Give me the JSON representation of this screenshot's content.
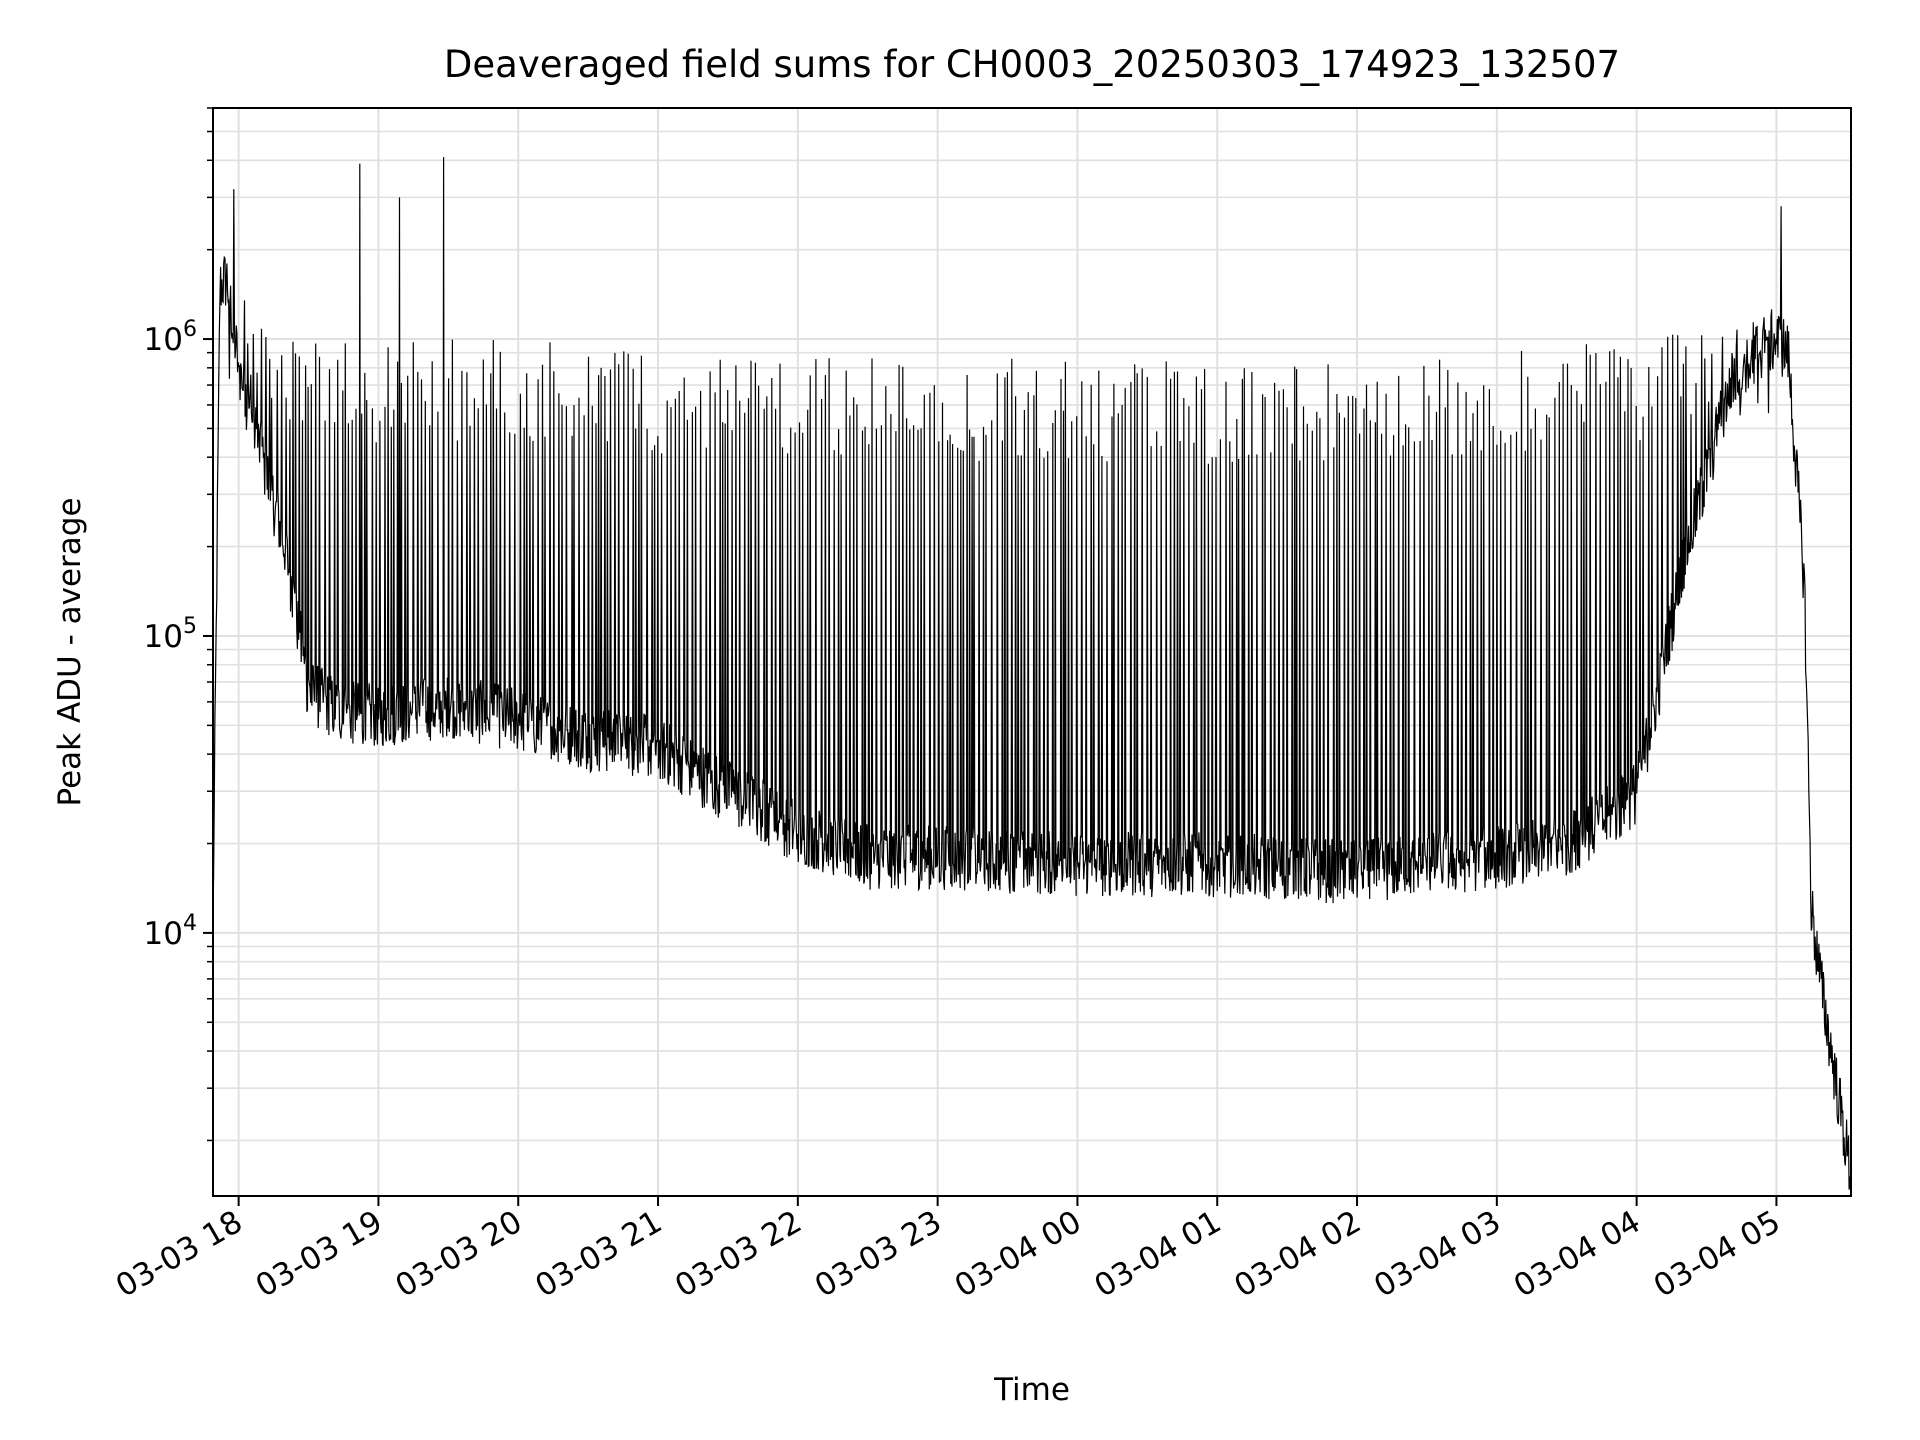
{
  "chart_data": {
    "type": "line",
    "title": "Deaveraged field sums for CH0003_20250303_174923_132507",
    "xlabel": "Time",
    "ylabel": "Peak ADU - average",
    "yscale": "log",
    "ylim": [
      1300,
      6000000
    ],
    "xlim": [
      "2025-03-03 17:49",
      "2025-03-04 05:32"
    ],
    "grid": true,
    "line_color": "#000000",
    "grid_color": "#e0e0e0",
    "xticks": [
      {
        "t": "2025-03-03 18:00",
        "label": "03-03 18"
      },
      {
        "t": "2025-03-03 19:00",
        "label": "03-03 19"
      },
      {
        "t": "2025-03-03 20:00",
        "label": "03-03 20"
      },
      {
        "t": "2025-03-03 21:00",
        "label": "03-03 21"
      },
      {
        "t": "2025-03-03 22:00",
        "label": "03-03 22"
      },
      {
        "t": "2025-03-03 23:00",
        "label": "03-03 23"
      },
      {
        "t": "2025-03-04 00:00",
        "label": "03-04 00"
      },
      {
        "t": "2025-03-04 01:00",
        "label": "03-04 01"
      },
      {
        "t": "2025-03-04 02:00",
        "label": "03-04 02"
      },
      {
        "t": "2025-03-04 03:00",
        "label": "03-04 03"
      },
      {
        "t": "2025-03-04 04:00",
        "label": "03-04 04"
      },
      {
        "t": "2025-03-04 05:00",
        "label": "03-04 05"
      }
    ],
    "yticks": [
      {
        "value": 10000,
        "base": "10",
        "exp": "4"
      },
      {
        "value": 100000,
        "base": "10",
        "exp": "5"
      },
      {
        "value": 1000000,
        "base": "10",
        "exp": "6"
      }
    ],
    "series": [
      {
        "baseline": [
          [
            "2025-03-03 17:49",
            11000
          ],
          [
            "2025-03-03 17:52",
            1500000
          ],
          [
            "2025-03-03 17:55",
            1600000
          ],
          [
            "2025-03-03 18:00",
            800000
          ],
          [
            "2025-03-03 18:10",
            400000
          ],
          [
            "2025-03-03 18:20",
            200000
          ],
          [
            "2025-03-03 18:30",
            65000
          ],
          [
            "2025-03-03 18:45",
            55000
          ],
          [
            "2025-03-03 19:00",
            54000
          ],
          [
            "2025-03-03 19:30",
            58000
          ],
          [
            "2025-03-03 20:00",
            52000
          ],
          [
            "2025-03-03 20:30",
            45000
          ],
          [
            "2025-03-03 21:00",
            42000
          ],
          [
            "2025-03-03 21:30",
            30000
          ],
          [
            "2025-03-03 22:00",
            22000
          ],
          [
            "2025-03-03 22:30",
            18000
          ],
          [
            "2025-03-03 23:00",
            18000
          ],
          [
            "2025-03-04 00:00",
            17000
          ],
          [
            "2025-03-04 01:00",
            17000
          ],
          [
            "2025-03-04 02:00",
            16000
          ],
          [
            "2025-03-04 03:00",
            18000
          ],
          [
            "2025-03-04 03:30",
            20000
          ],
          [
            "2025-03-04 03:50",
            25000
          ],
          [
            "2025-03-04 04:00",
            30000
          ],
          [
            "2025-03-04 04:10",
            70000
          ],
          [
            "2025-03-04 04:20",
            180000
          ],
          [
            "2025-03-04 04:30",
            350000
          ],
          [
            "2025-03-04 04:40",
            700000
          ],
          [
            "2025-03-04 04:50",
            900000
          ],
          [
            "2025-03-04 05:00",
            1000000
          ],
          [
            "2025-03-04 05:05",
            900000
          ],
          [
            "2025-03-04 05:12",
            150000
          ],
          [
            "2025-03-04 05:15",
            12000
          ],
          [
            "2025-03-04 05:20",
            6000
          ],
          [
            "2025-03-04 05:32",
            1500
          ]
        ],
        "noise_decades": 0.22,
        "spike_interval_minutes": 1.3,
        "spike_tops": [
          [
            "2025-03-03 17:55",
            1500000
          ],
          [
            "2025-03-03 18:30",
            1000000
          ],
          [
            "2025-03-03 20:00",
            1000000
          ],
          [
            "2025-03-03 21:00",
            900000
          ],
          [
            "2025-03-03 22:00",
            900000
          ],
          [
            "2025-03-04 00:00",
            850000
          ],
          [
            "2025-03-04 02:00",
            850000
          ],
          [
            "2025-03-04 03:00",
            900000
          ],
          [
            "2025-03-04 04:00",
            1000000
          ],
          [
            "2025-03-04 04:50",
            1200000
          ]
        ],
        "peaks": [
          [
            "2025-03-03 17:58",
            3200000
          ],
          [
            "2025-03-03 18:52",
            3900000
          ],
          [
            "2025-03-03 19:09",
            3000000
          ],
          [
            "2025-03-03 19:28",
            4100000
          ],
          [
            "2025-03-04 05:02",
            2800000
          ]
        ]
      }
    ]
  }
}
